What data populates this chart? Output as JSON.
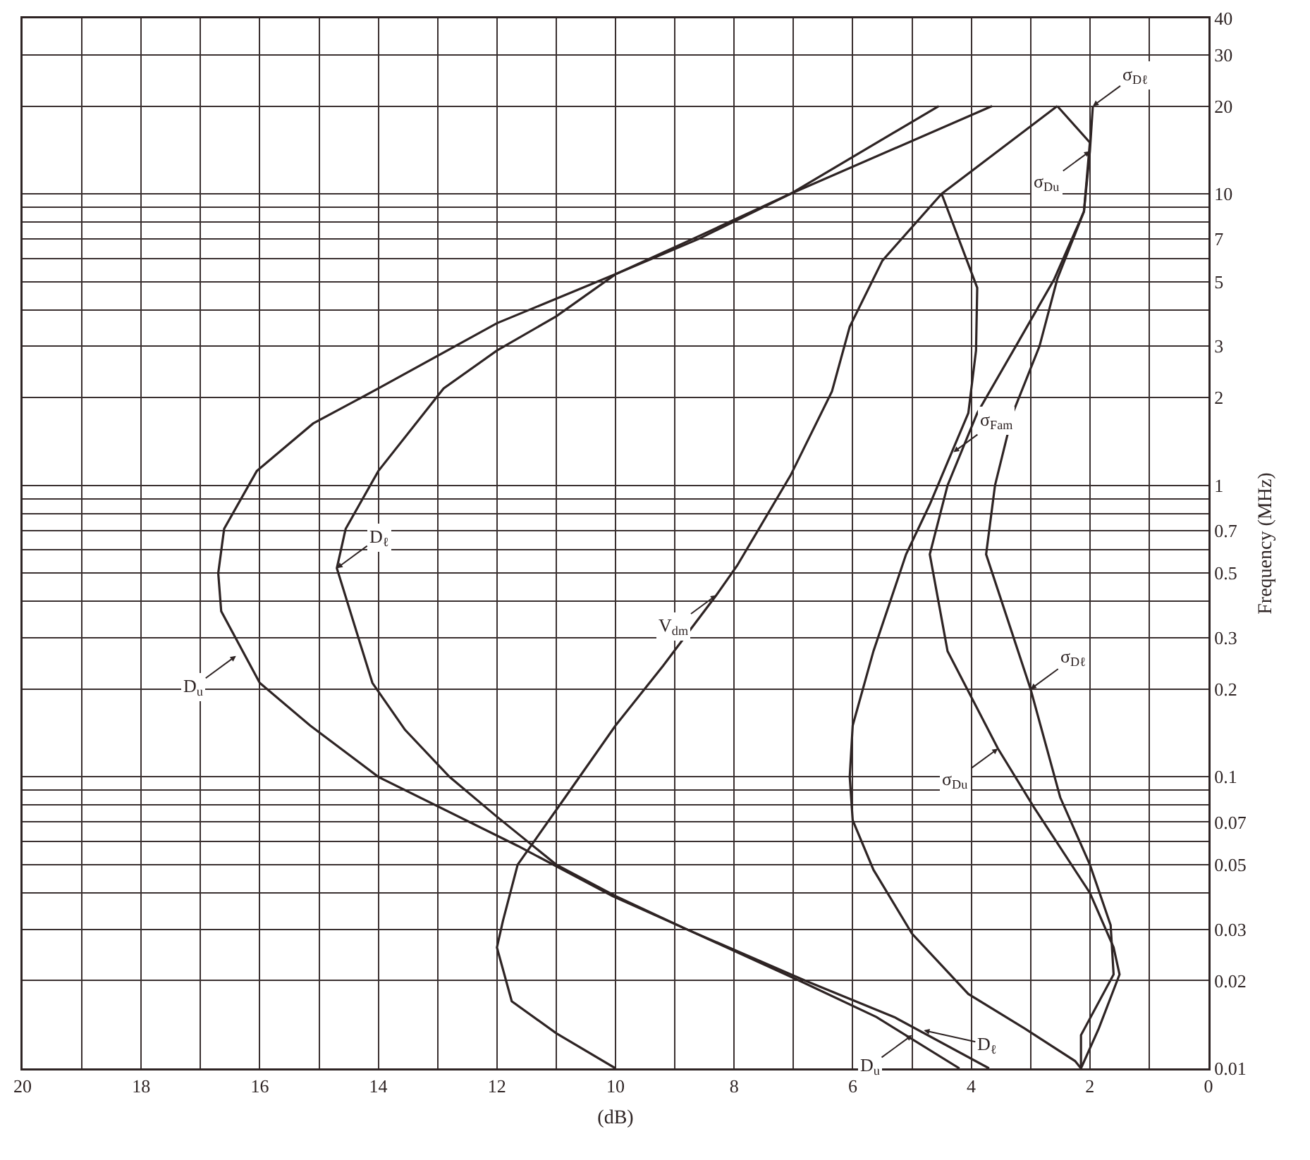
{
  "chart_data": {
    "type": "line",
    "xlabel": "(dB)",
    "ylabel": "Frequency (MHz)",
    "log": "y",
    "grid": true,
    "marker": "none",
    "line_style": "solid",
    "xlim": [
      20,
      0
    ],
    "ylim": [
      0.01,
      40
    ],
    "xticks": [
      0,
      {
        "value": 1,
        "label": null
      },
      2,
      {
        "value": 3,
        "label": null
      },
      4,
      {
        "value": 5,
        "label": null
      },
      6,
      {
        "value": 7,
        "label": null
      },
      8,
      {
        "value": 9,
        "label": null
      },
      10,
      {
        "value": 11,
        "label": null
      },
      12,
      {
        "value": 13,
        "label": null
      },
      14,
      {
        "value": 15,
        "label": null
      },
      16,
      {
        "value": 17,
        "label": null
      },
      18,
      {
        "value": 19,
        "label": null
      },
      20
    ],
    "yticks": [
      0.01,
      0.02,
      0.03,
      {
        "value": 0.04,
        "label": null
      },
      0.05,
      {
        "value": 0.06,
        "label": null
      },
      0.07,
      {
        "value": 0.08,
        "label": null
      },
      {
        "value": 0.09,
        "label": null
      },
      0.1,
      0.2,
      0.3,
      {
        "value": 0.4,
        "label": null
      },
      0.5,
      {
        "value": 0.6,
        "label": null
      },
      0.7,
      {
        "value": 0.8,
        "label": null
      },
      {
        "value": 0.9,
        "label": null
      },
      1,
      2,
      3,
      {
        "value": 4,
        "label": null
      },
      5,
      {
        "value": 6,
        "label": null
      },
      7,
      {
        "value": 8,
        "label": null
      },
      {
        "value": 9,
        "label": null
      },
      10,
      20,
      30,
      40
    ],
    "series": [
      {
        "color": "#2e2424",
        "values": [
          0.01,
          0.015,
          0.02,
          0.03,
          0.039,
          0.058,
          0.1,
          0.15,
          0.21,
          0.37,
          0.5,
          0.71,
          1.12,
          1.63,
          2.15,
          3.6,
          5.3,
          7,
          10,
          20
        ],
        "x": [
          4.2,
          5.6,
          6.9,
          8.8,
          10.05,
          11.65,
          14.0,
          15.15,
          16.0,
          16.65,
          16.7,
          16.6,
          16.05,
          15.1,
          14.0,
          12.0,
          10.0,
          8.6,
          7.05,
          3.65
        ]
      },
      {
        "color": "#2e2424",
        "values": [
          0.01,
          0.015,
          0.02,
          0.03,
          0.039,
          0.05,
          0.073,
          0.1,
          0.145,
          0.21,
          0.52,
          0.71,
          1.12,
          2.15,
          2.9,
          3.8,
          5.3,
          7,
          10,
          20
        ],
        "x": [
          3.7,
          5.3,
          6.8,
          8.8,
          10.0,
          11.0,
          12.0,
          12.8,
          13.55,
          14.1,
          14.7,
          14.55,
          14.0,
          12.9,
          12.0,
          11.0,
          10.0,
          8.7,
          7.05,
          4.55
        ]
      },
      {
        "color": "#2e2424",
        "values": [
          0.01,
          0.0132,
          0.017,
          0.026,
          0.032,
          0.05,
          0.085,
          0.15,
          0.24,
          0.42,
          0.53,
          1.08,
          2.1,
          3.5,
          5.9,
          10,
          20
        ],
        "x": [
          10.0,
          11.0,
          11.75,
          12.0,
          11.9,
          11.65,
          10.85,
          10.0,
          9.2,
          8.3,
          7.95,
          7.05,
          6.35,
          6.05,
          5.5,
          4.5,
          2.55
        ]
      },
      {
        "color": "#2e2424",
        "values": [
          0.01,
          0.0106,
          0.0137,
          0.018,
          0.029,
          0.048,
          0.071,
          0.1,
          0.15,
          0.27,
          0.58,
          0.86,
          1.2,
          1.77,
          2.9,
          4.76,
          10
        ],
        "x": [
          2.15,
          2.25,
          3.1,
          4.05,
          5.0,
          5.65,
          6.0,
          6.05,
          6.0,
          5.65,
          5.1,
          4.7,
          4.4,
          4.05,
          3.92,
          3.9,
          4.5
        ]
      },
      {
        "color": "#2e2424",
        "values": [
          0.01,
          0.0137,
          0.021,
          0.026,
          0.04,
          0.079,
          0.125,
          0.27,
          0.58,
          1.0,
          1.77,
          3.0,
          5.1,
          8.7,
          15,
          20
        ],
        "x": [
          2.15,
          1.85,
          1.5,
          1.6,
          2.0,
          2.95,
          3.55,
          4.4,
          4.7,
          4.4,
          3.9,
          3.25,
          2.6,
          2.1,
          2.0,
          2.55
        ]
      },
      {
        "color": "#2e2424",
        "values": [
          0.01,
          0.013,
          0.021,
          0.031,
          0.05,
          0.085,
          0.2,
          0.58,
          1.0,
          1.77,
          3.0,
          5.1,
          8.7,
          14,
          20
        ],
        "x": [
          2.15,
          2.15,
          1.6,
          1.65,
          2.0,
          2.5,
          3.0,
          3.75,
          3.6,
          3.3,
          2.85,
          2.55,
          2.1,
          2.0,
          1.95
        ]
      }
    ],
    "annotations": [
      {
        "text": "D$_{u}$",
        "x": 16.4,
        "y": 0.26
      },
      {
        "text": "D$_{ℓ}$",
        "x": 14.7,
        "y": 0.52
      },
      {
        "text": "V$_{dm}$",
        "x": 8.3,
        "y": 0.42
      },
      {
        "text": "σ$_{Fam}$",
        "x": 4.3,
        "y": 1.3
      },
      {
        "text": "σ$_{Du}$",
        "x": 3.55,
        "y": 0.125
      },
      {
        "text": "σ$_{Dℓ}$",
        "x": 3.0,
        "y": 0.2
      },
      {
        "text": "D$_{u}$",
        "x": 5.0,
        "y": 0.013
      },
      {
        "text": "D$_{ℓ}$",
        "x": 4.8,
        "y": 0.0135
      },
      {
        "text": "σ$_{Du}$",
        "x": 2.0,
        "y": 14
      },
      {
        "text": "σ$_{Dℓ}$",
        "x": 1.95,
        "y": 20
      }
    ]
  }
}
